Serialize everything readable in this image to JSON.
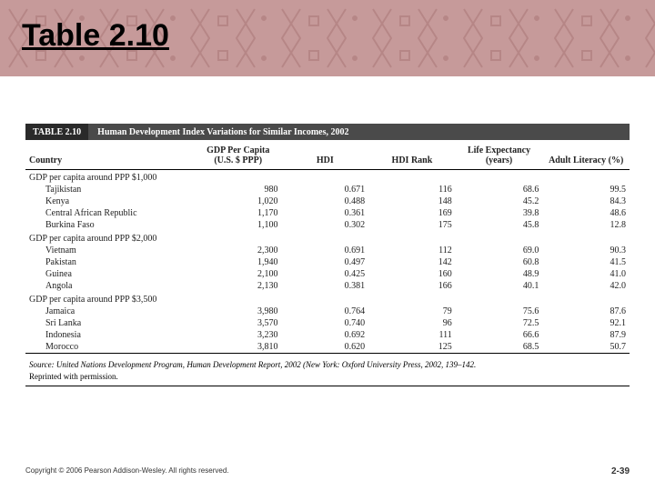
{
  "slide": {
    "title": "Table 2.10",
    "header_band_color": "#c69a9a",
    "pattern_color": "#a87474"
  },
  "table": {
    "number_label": "TABLE 2.10",
    "title": "Human Development Index Variations for Similar Incomes, 2002",
    "bar_bg": "#4a4a4a",
    "bar_text": "#ffffff",
    "columns": [
      "Country",
      "GDP Per Capita (U.S. $ PPP)",
      "HDI",
      "HDI Rank",
      "Life Expectancy (years)",
      "Adult Literacy (%)"
    ],
    "groups": [
      {
        "label": "GDP per capita around PPP $1,000",
        "rows": [
          {
            "country": "Tajikistan",
            "gdp": "980",
            "hdi": "0.671",
            "rank": "116",
            "life": "68.6",
            "lit": "99.5"
          },
          {
            "country": "Kenya",
            "gdp": "1,020",
            "hdi": "0.488",
            "rank": "148",
            "life": "45.2",
            "lit": "84.3"
          },
          {
            "country": "Central African Republic",
            "gdp": "1,170",
            "hdi": "0.361",
            "rank": "169",
            "life": "39.8",
            "lit": "48.6"
          },
          {
            "country": "Burkina Faso",
            "gdp": "1,100",
            "hdi": "0.302",
            "rank": "175",
            "life": "45.8",
            "lit": "12.8"
          }
        ]
      },
      {
        "label": "GDP per capita around PPP $2,000",
        "rows": [
          {
            "country": "Vietnam",
            "gdp": "2,300",
            "hdi": "0.691",
            "rank": "112",
            "life": "69.0",
            "lit": "90.3"
          },
          {
            "country": "Pakistan",
            "gdp": "1,940",
            "hdi": "0.497",
            "rank": "142",
            "life": "60.8",
            "lit": "41.5"
          },
          {
            "country": "Guinea",
            "gdp": "2,100",
            "hdi": "0.425",
            "rank": "160",
            "life": "48.9",
            "lit": "41.0"
          },
          {
            "country": "Angola",
            "gdp": "2,130",
            "hdi": "0.381",
            "rank": "166",
            "life": "40.1",
            "lit": "42.0"
          }
        ]
      },
      {
        "label": "GDP per capita around PPP $3,500",
        "rows": [
          {
            "country": "Jamaica",
            "gdp": "3,980",
            "hdi": "0.764",
            "rank": "79",
            "life": "75.6",
            "lit": "87.6"
          },
          {
            "country": "Sri Lanka",
            "gdp": "3,570",
            "hdi": "0.740",
            "rank": "96",
            "life": "72.5",
            "lit": "92.1"
          },
          {
            "country": "Indonesia",
            "gdp": "3,230",
            "hdi": "0.692",
            "rank": "111",
            "life": "66.6",
            "lit": "87.9"
          },
          {
            "country": "Morocco",
            "gdp": "3,810",
            "hdi": "0.620",
            "rank": "125",
            "life": "68.5",
            "lit": "50.7"
          }
        ]
      }
    ],
    "source_label": "Source:",
    "source_text_1": "United Nations Development Program, ",
    "source_text_italic": "Human Development Report, 2002",
    "source_text_2": " (New York: Oxford University Press, 2002, 139–142.",
    "source_text_3": "Reprinted with permission."
  },
  "footer": {
    "copyright": "Copyright © 2006 Pearson Addison-Wesley. All rights reserved.",
    "page": "2-39"
  }
}
